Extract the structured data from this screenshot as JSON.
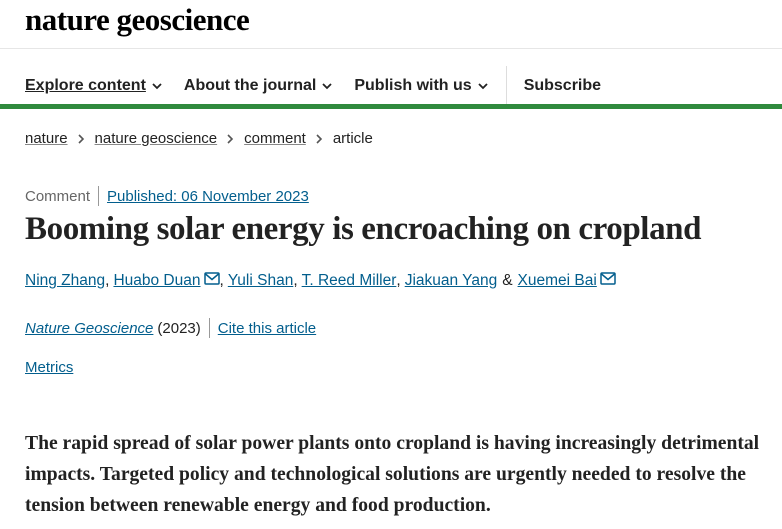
{
  "header": {
    "logo": "nature geoscience",
    "nav": [
      {
        "label": "Explore content",
        "dropdown": true
      },
      {
        "label": "About the journal",
        "dropdown": true
      },
      {
        "label": "Publish with us",
        "dropdown": true
      },
      {
        "label": "Subscribe",
        "dropdown": false
      }
    ]
  },
  "breadcrumbs": [
    "nature",
    "nature geoscience",
    "comment",
    "article"
  ],
  "article": {
    "type": "Comment",
    "published": "Published: 06 November 2023",
    "title": "Booming solar energy is encroaching on cropland",
    "authors": [
      {
        "name": "Ning Zhang",
        "email": false
      },
      {
        "name": "Huabo Duan",
        "email": true
      },
      {
        "name": "Yuli Shan",
        "email": false
      },
      {
        "name": "T. Reed Miller",
        "email": false
      },
      {
        "name": "Jiakuan Yang",
        "email": false
      },
      {
        "name": "Xuemei Bai",
        "email": true
      }
    ],
    "author_separator": ",",
    "author_conjunction": "&",
    "journal": "Nature Geoscience",
    "year": "(2023)",
    "cite": "Cite this article",
    "metrics": "Metrics",
    "abstract_lines": [
      "The rapid spread of solar power plants onto cropland is having increasingly detrimental",
      "impacts. Targeted policy and technological solutions are urgently needed to resolve the",
      "tension between renewable energy and food production."
    ]
  }
}
